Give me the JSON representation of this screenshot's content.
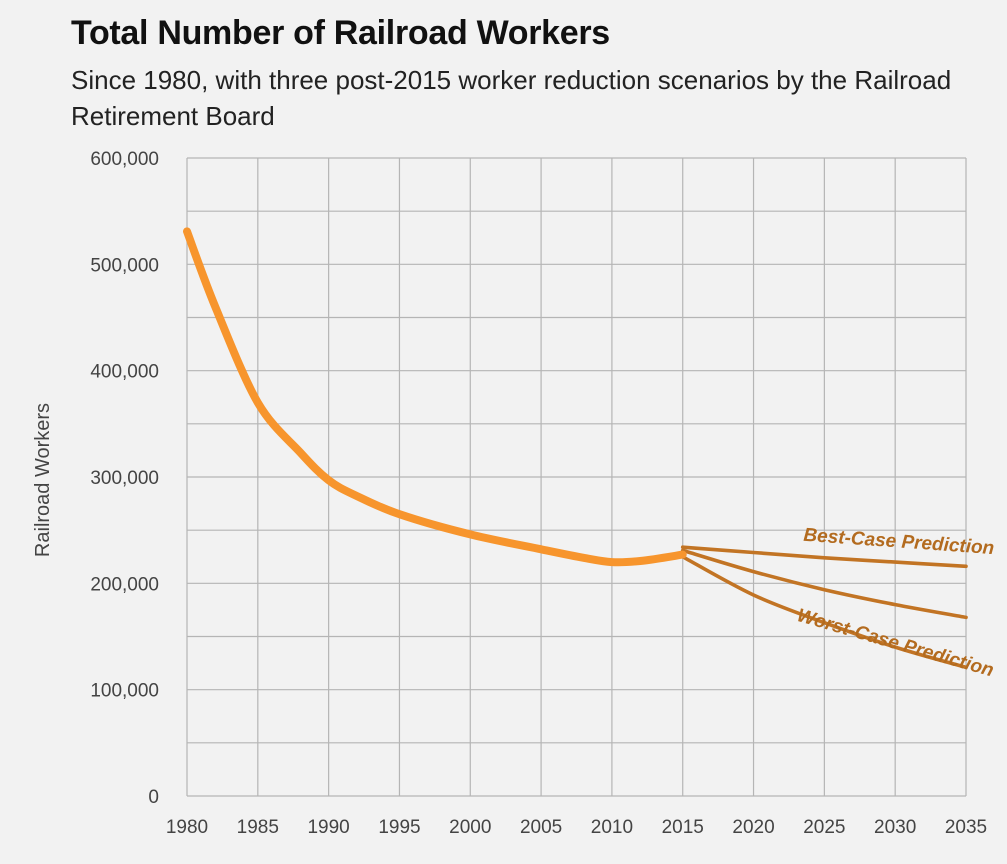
{
  "chart_data": {
    "type": "line",
    "title": "Total Number of Railroad Workers",
    "subtitle": "Since 1980, with three post-2015 worker reduction scenarios by the Railroad Retirement Board",
    "xlabel": "",
    "ylabel": "Railroad Workers",
    "xlim": [
      1980,
      2035
    ],
    "ylim": [
      0,
      600000
    ],
    "x_ticks": [
      "1980",
      "1985",
      "1990",
      "1995",
      "2000",
      "2005",
      "2010",
      "2015",
      "2020",
      "2025",
      "2030",
      "2035"
    ],
    "y_ticks": [
      "0",
      "100,000",
      "200,000",
      "300,000",
      "400,000",
      "500,000",
      "600,000"
    ],
    "grid": true,
    "series": [
      {
        "color": "#f7952d",
        "x": [
          1980,
          1982,
          1985,
          1988,
          1990,
          1992,
          1995,
          2000,
          2005,
          2008,
          2010,
          2012,
          2015
        ],
        "y": [
          531000,
          460000,
          370000,
          323000,
          297000,
          282000,
          265000,
          246000,
          232000,
          224000,
          220000,
          221000,
          227000
        ]
      },
      {
        "color": "#c27424",
        "x": [
          2015,
          2020,
          2025,
          2030,
          2035
        ],
        "y": [
          234000,
          229000,
          224000,
          220000,
          216000
        ]
      },
      {
        "color": "#c27424",
        "x": [
          2015,
          2020,
          2025,
          2030,
          2035
        ],
        "y": [
          231000,
          211000,
          194000,
          180000,
          168000
        ]
      },
      {
        "color": "#c27424",
        "x": [
          2015,
          2020,
          2025,
          2030,
          2035
        ],
        "y": [
          225000,
          189000,
          163000,
          140000,
          121000
        ]
      }
    ],
    "annotations": [
      {
        "text": "Best-Case Prediction",
        "x": 2023.5,
        "y": 240000
      },
      {
        "text": "Worst-Case Prediction",
        "x": 2023,
        "y": 165000
      }
    ]
  }
}
